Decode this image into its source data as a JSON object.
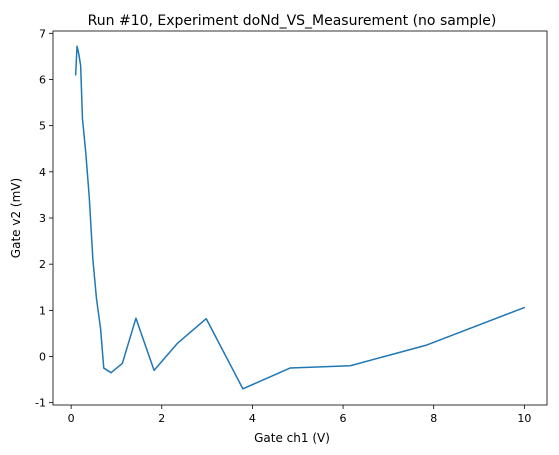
{
  "chart_data": {
    "type": "line",
    "title": "Run #10, Experiment doNd_VS_Measurement (no sample)",
    "xlabel": "Gate ch1 (V)",
    "ylabel": "Gate v2 (mV)",
    "xlim": [
      -0.4,
      10.5
    ],
    "ylim": [
      -1.05,
      7.05
    ],
    "xticks": [
      0,
      2,
      4,
      6,
      8,
      10
    ],
    "yticks": [
      -1,
      0,
      1,
      2,
      3,
      4,
      5,
      6,
      7
    ],
    "grid": false,
    "series": [
      {
        "color": "#1f77b4",
        "x": [
          0.1,
          0.13,
          0.17,
          0.21,
          0.25,
          0.32,
          0.4,
          0.48,
          0.56,
          0.65,
          0.72,
          0.88,
          1.13,
          1.43,
          1.83,
          2.34,
          2.98,
          3.79,
          4.83,
          6.16,
          7.85,
          10.0
        ],
        "y": [
          6.1,
          6.72,
          6.55,
          6.3,
          5.15,
          4.45,
          3.45,
          2.1,
          1.25,
          0.6,
          -0.25,
          -0.35,
          -0.15,
          0.83,
          -0.3,
          0.28,
          0.82,
          -0.7,
          -0.25,
          -0.2,
          0.25,
          1.06
        ]
      }
    ]
  }
}
